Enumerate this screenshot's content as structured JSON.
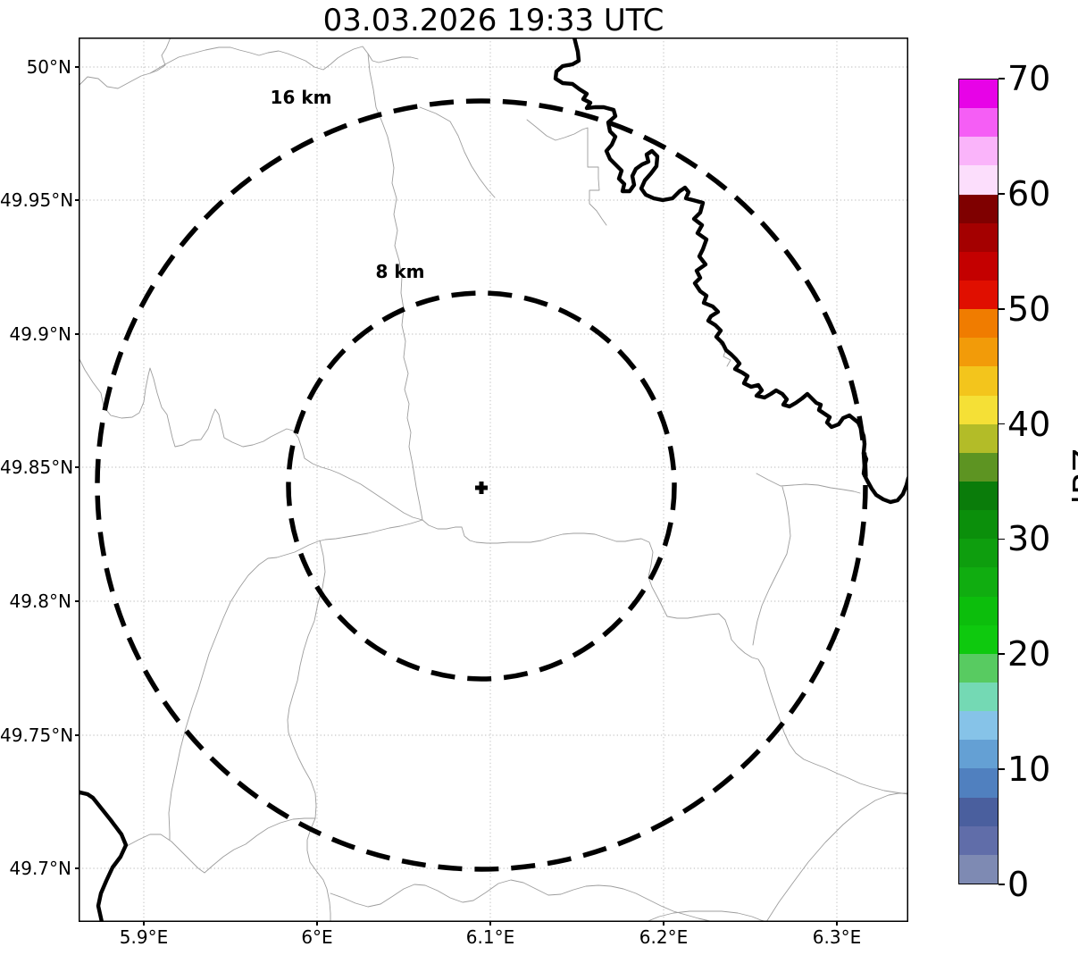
{
  "title": "03.03.2026 19:33 UTC",
  "map": {
    "x_ticks": [
      "5.9°E",
      "6°E",
      "6.1°E",
      "6.2°E",
      "6.3°E"
    ],
    "y_ticks": [
      "50°N",
      "49.95°N",
      "49.9°N",
      "49.85°N",
      "49.8°N",
      "49.75°N",
      "49.7°N"
    ],
    "rings": [
      {
        "label": "16 km",
        "radius_km": 16
      },
      {
        "label": "8 km",
        "radius_km": 8
      }
    ],
    "site_marker": "+"
  },
  "colorbar": {
    "label": "dBZ",
    "tick_values": [
      0,
      10,
      20,
      30,
      40,
      50,
      60,
      70
    ],
    "min": 0,
    "max": 70,
    "step_dbz": 2.5,
    "colors_bottom_to_top": [
      "#7e8ab3",
      "#606da9",
      "#4a5f9e",
      "#5080bf",
      "#64a0d4",
      "#86c3e8",
      "#74d9b4",
      "#58cb61",
      "#0ec90e",
      "#0cbe0c",
      "#10ad10",
      "#0e9e0e",
      "#0b8f0b",
      "#0a7c0a",
      "#5d9422",
      "#b3bc28",
      "#f5e036",
      "#f3c51c",
      "#f29b09",
      "#f07c00",
      "#e00f00",
      "#c40000",
      "#a40000",
      "#7f0000",
      "#fcdefc",
      "#fab4fa",
      "#f55ef5",
      "#e703e7"
    ]
  },
  "chart_data": {
    "type": "map",
    "title": "03.03.2026 19:33 UTC",
    "x_ticks": [
      "5.9°E",
      "6°E",
      "6.1°E",
      "6.2°E",
      "6.3°E"
    ],
    "y_ticks": [
      "50°N",
      "49.95°N",
      "49.9°N",
      "49.85°N",
      "49.8°N",
      "49.75°N",
      "49.7°N"
    ],
    "colorbar_label": "dBZ",
    "colorbar_range": [
      0,
      70
    ],
    "colorbar_tick_values": [
      0,
      10,
      20,
      30,
      40,
      50,
      60,
      70
    ],
    "range_rings_km": [
      16,
      8
    ],
    "radar_echoes_visible": false,
    "grid": true,
    "legend_position": "right-colorbar"
  }
}
